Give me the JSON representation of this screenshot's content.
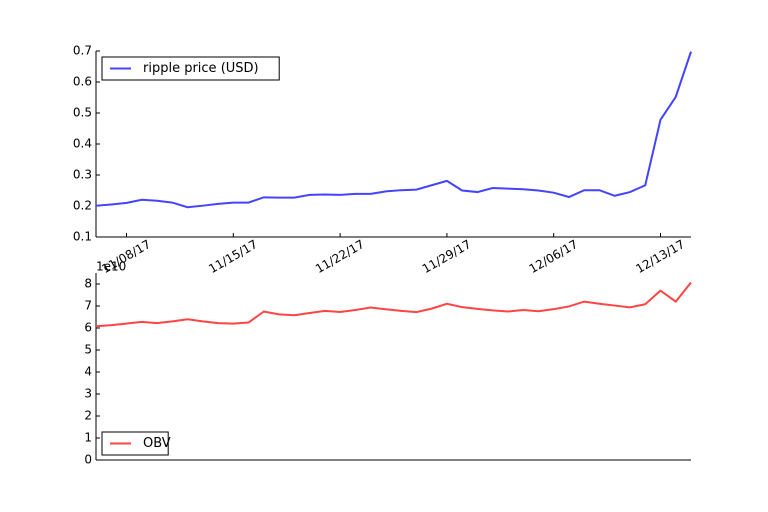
{
  "chart_data": [
    {
      "type": "line",
      "x": [
        "11/06/17",
        "11/07/17",
        "11/08/17",
        "11/09/17",
        "11/10/17",
        "11/11/17",
        "11/12/17",
        "11/13/17",
        "11/14/17",
        "11/15/17",
        "11/16/17",
        "11/17/17",
        "11/18/17",
        "11/19/17",
        "11/20/17",
        "11/21/17",
        "11/22/17",
        "11/23/17",
        "11/24/17",
        "11/25/17",
        "11/26/17",
        "11/27/17",
        "11/28/17",
        "11/29/17",
        "11/30/17",
        "12/01/17",
        "12/02/17",
        "12/03/17",
        "12/04/17",
        "12/05/17",
        "12/06/17",
        "12/07/17",
        "12/08/17",
        "12/09/17",
        "12/10/17",
        "12/11/17",
        "12/12/17",
        "12/13/17",
        "12/14/17",
        "12/15/17"
      ],
      "series": [
        {
          "name": "ripple price (USD)",
          "color": "#4444ff",
          "values": [
            0.201,
            0.205,
            0.21,
            0.22,
            0.217,
            0.211,
            0.196,
            0.201,
            0.207,
            0.211,
            0.211,
            0.228,
            0.227,
            0.227,
            0.236,
            0.237,
            0.236,
            0.239,
            0.239,
            0.247,
            0.251,
            0.253,
            0.267,
            0.281,
            0.25,
            0.245,
            0.258,
            0.256,
            0.254,
            0.25,
            0.243,
            0.229,
            0.251,
            0.251,
            0.233,
            0.245,
            0.267,
            0.478,
            0.552,
            0.698
          ]
        }
      ],
      "xlim": [
        "11/06/17",
        "12/15/17"
      ],
      "xticks": [
        "11/08/17",
        "11/15/17",
        "11/22/17",
        "11/29/17",
        "12/06/17",
        "12/13/17"
      ],
      "ylim": [
        0.1,
        0.7
      ],
      "yticks": [
        0.1,
        0.2,
        0.3,
        0.4,
        0.5,
        0.6,
        0.7
      ],
      "legend": "upper left"
    },
    {
      "type": "line",
      "x": [
        "11/06/17",
        "11/07/17",
        "11/08/17",
        "11/09/17",
        "11/10/17",
        "11/11/17",
        "11/12/17",
        "11/13/17",
        "11/14/17",
        "11/15/17",
        "11/16/17",
        "11/17/17",
        "11/18/17",
        "11/19/17",
        "11/20/17",
        "11/21/17",
        "11/22/17",
        "11/23/17",
        "11/24/17",
        "11/25/17",
        "11/26/17",
        "11/27/17",
        "11/28/17",
        "11/29/17",
        "11/30/17",
        "12/01/17",
        "12/02/17",
        "12/03/17",
        "12/04/17",
        "12/05/17",
        "12/06/17",
        "12/07/17",
        "12/08/17",
        "12/09/17",
        "12/10/17",
        "12/11/17",
        "12/12/17",
        "12/13/17",
        "12/14/17",
        "12/15/17"
      ],
      "series": [
        {
          "name": "OBV",
          "color": "#ff4444",
          "values": [
            6.08,
            6.13,
            6.2,
            6.28,
            6.22,
            6.3,
            6.4,
            6.3,
            6.22,
            6.2,
            6.25,
            6.75,
            6.62,
            6.58,
            6.68,
            6.78,
            6.73,
            6.82,
            6.93,
            6.85,
            6.78,
            6.72,
            6.88,
            7.1,
            6.95,
            6.87,
            6.8,
            6.75,
            6.82,
            6.76,
            6.86,
            6.98,
            7.2,
            7.1,
            7.02,
            6.94,
            7.08,
            7.7,
            7.2,
            8.07
          ]
        }
      ],
      "xlim": [
        "11/06/17",
        "12/15/17"
      ],
      "ylim": [
        0,
        8.5
      ],
      "yticks": [
        0,
        1,
        2,
        3,
        4,
        5,
        6,
        7,
        8
      ],
      "offset_text": "1e10",
      "legend": "lower left"
    }
  ]
}
